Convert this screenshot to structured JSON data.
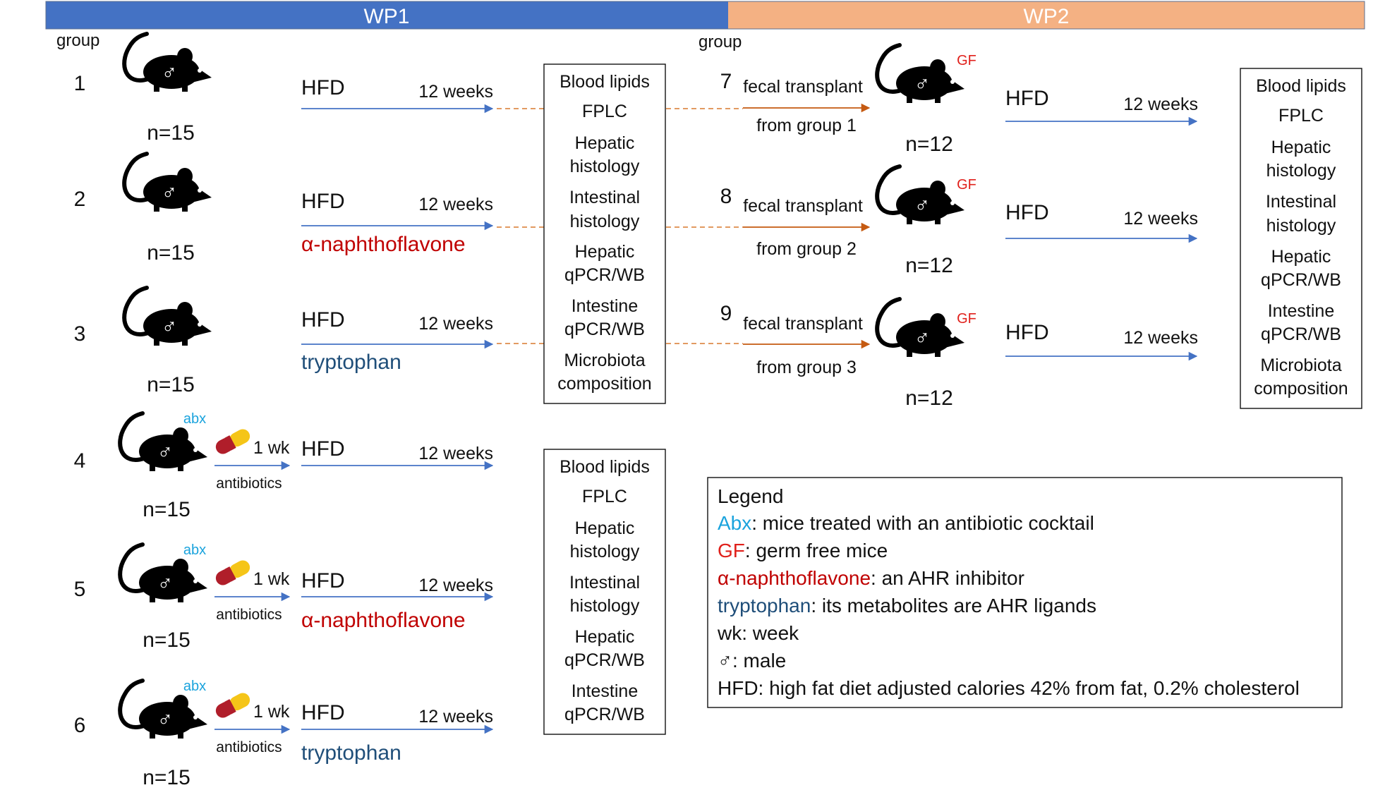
{
  "header": {
    "wp1": {
      "label": "WP1",
      "color": "#4472c4"
    },
    "wp2": {
      "label": "WP2",
      "color": "#f4b183"
    }
  },
  "group_header_label": "group",
  "sample_size_label_wp1": "n=15",
  "sample_size_label_wp2": "n=12",
  "diet_label": "HFD",
  "duration_label": "12 weeks",
  "pretreatment": {
    "duration": "1 wk",
    "label": "antibiotics"
  },
  "transplant_label": "fecal transplant",
  "badges": {
    "abx": "abx",
    "gf": "GF"
  },
  "male_symbol": "♂",
  "agents": {
    "anf": {
      "text": "α-naphthoflavone",
      "color": "#c00000"
    },
    "trp": {
      "text": "tryptophan",
      "color": "#1f4e79"
    }
  },
  "groups": [
    {
      "id": "1",
      "agent": "",
      "abx": false
    },
    {
      "id": "2",
      "agent": "anf",
      "abx": false
    },
    {
      "id": "3",
      "agent": "trp",
      "abx": false
    },
    {
      "id": "4",
      "agent": "",
      "abx": true
    },
    {
      "id": "5",
      "agent": "anf",
      "abx": true
    },
    {
      "id": "6",
      "agent": "trp",
      "abx": true
    },
    {
      "id": "7",
      "source": "from group 1"
    },
    {
      "id": "8",
      "source": "from group 2"
    },
    {
      "id": "9",
      "source": "from group 3"
    }
  ],
  "measure_boxes": [
    {
      "id": "wp1-top",
      "lines": [
        "Blood lipids",
        "FPLC",
        "Hepatic",
        "histology",
        "Intestinal",
        "histology",
        "Hepatic",
        "qPCR/WB",
        "Intestine",
        "qPCR/WB",
        "Microbiota",
        "composition"
      ]
    },
    {
      "id": "wp1-bottom",
      "lines": [
        "Blood lipids",
        "FPLC",
        "Hepatic",
        "histology",
        "Intestinal",
        "histology",
        "Hepatic",
        "qPCR/WB",
        "Intestine",
        "qPCR/WB"
      ]
    },
    {
      "id": "wp2",
      "lines": [
        "Blood lipids",
        "FPLC",
        "Hepatic",
        "histology",
        "Intestinal",
        "histology",
        "Hepatic",
        "qPCR/WB",
        "Intestine",
        "qPCR/WB",
        "Microbiota",
        "composition"
      ]
    }
  ],
  "legend": {
    "title": "Legend",
    "items": [
      {
        "key": "Abx",
        "key_color": "#1aa3dd",
        "text": ": mice treated with an antibiotic cocktail"
      },
      {
        "key": "GF",
        "key_color": "#e0201b",
        "text": ": germ free mice"
      },
      {
        "key": "α-naphthoflavone",
        "key_color": "#c00000",
        "text": ": an AHR inhibitor"
      },
      {
        "key": "tryptophan",
        "key_color": "#1f4e79",
        "text": ": its metabolites are AHR ligands"
      },
      {
        "key": "",
        "key_color": "#111111",
        "text": "wk: week"
      },
      {
        "key": "♂",
        "key_color": "#111111",
        "text": ": male"
      },
      {
        "key": "",
        "key_color": "#111111",
        "text": "HFD: high fat diet adjusted calories 42% from fat, 0.2% cholesterol"
      }
    ]
  },
  "colors": {
    "blue_arrow": "#4472c4",
    "orange_arrow": "#c55a11",
    "dashed_link": "#d9782d"
  }
}
